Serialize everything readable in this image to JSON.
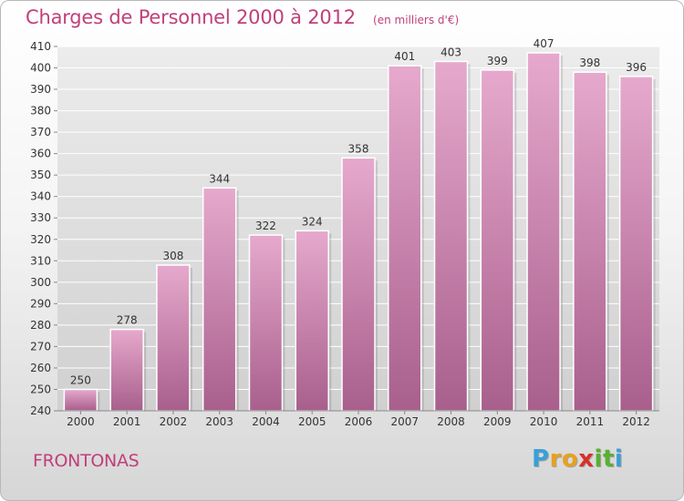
{
  "title": "Charges de Personnel 2000 à 2012",
  "subtitle": "(en milliers d'€)",
  "commune": "FRONTONAS",
  "logo": {
    "letters": [
      "P",
      "r",
      "o",
      "x",
      "i",
      "t",
      "i"
    ],
    "colors": [
      "#3aa0d8",
      "#e8a020",
      "#e8a020",
      "#d8302a",
      "#58b030",
      "#58b030",
      "#3aa0d8"
    ]
  },
  "colors": {
    "bar_top": "#e6a9cd",
    "bar_bottom": "#a85f8c",
    "text": "#c0407a",
    "grid": "#ffffff",
    "plot_bg": "#dcdcdc"
  },
  "chart_data": {
    "type": "bar",
    "title": "Charges de Personnel 2000 à 2012",
    "subtitle": "(en milliers d'€)",
    "categories": [
      "2000",
      "2001",
      "2002",
      "2003",
      "2004",
      "2005",
      "2006",
      "2007",
      "2008",
      "2009",
      "2010",
      "2011",
      "2012"
    ],
    "values": [
      250,
      278,
      308,
      344,
      322,
      324,
      358,
      401,
      403,
      399,
      407,
      398,
      396
    ],
    "value_labels": [
      "250",
      "278",
      "308",
      "344",
      "322",
      "324",
      "358",
      "401",
      "403",
      "399",
      "407",
      "398",
      "396"
    ],
    "yticks": [
      "240",
      "250",
      "260",
      "270",
      "280",
      "290",
      "300",
      "310",
      "320",
      "330",
      "340",
      "350",
      "360",
      "370",
      "380",
      "390",
      "400",
      "410"
    ],
    "ylim": [
      240,
      410
    ],
    "xlabel": "",
    "ylabel": "",
    "grid": true,
    "legend": "none"
  }
}
